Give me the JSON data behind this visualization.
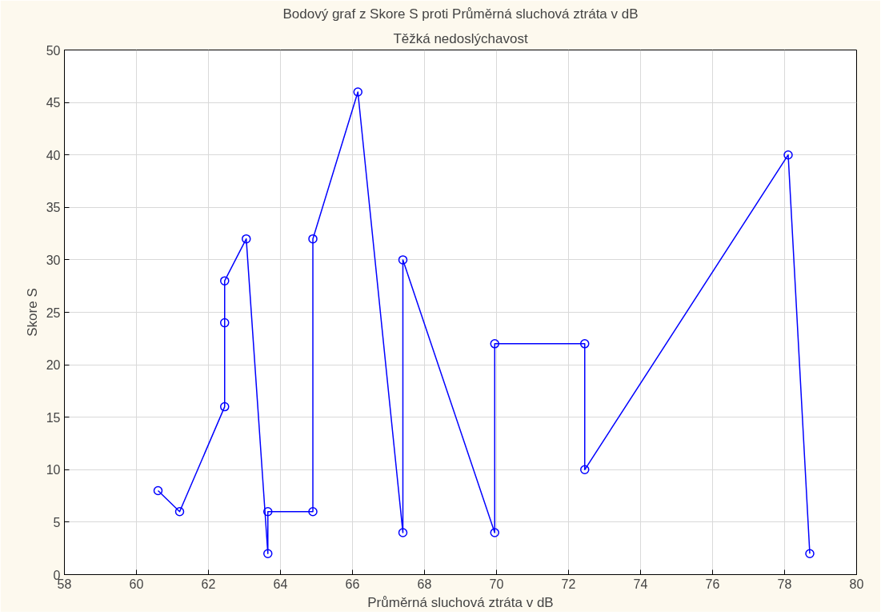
{
  "chart_data": {
    "type": "line",
    "title": "Bodový graf z Skore S proti Průměrná sluchová ztráta v dB",
    "subtitle": "Těžká nedoslýchavost",
    "xlabel": "Průměrná sluchová ztráta v dB",
    "ylabel": "Skore S",
    "x": [
      60.6,
      61.2,
      62.45,
      62.45,
      62.45,
      63.05,
      63.65,
      63.65,
      64.9,
      64.9,
      66.15,
      67.4,
      67.4,
      69.95,
      69.95,
      72.45,
      72.45,
      78.1,
      78.7
    ],
    "series": [
      {
        "color": "#0000ff",
        "values": [
          8,
          6,
          16,
          24,
          28,
          32,
          2,
          6,
          6,
          32,
          46,
          4,
          30,
          4,
          22,
          22,
          10,
          40,
          2
        ]
      }
    ],
    "xlim": [
      58,
      80
    ],
    "ylim": [
      0,
      50
    ],
    "xticks": [
      58,
      60,
      62,
      64,
      66,
      68,
      70,
      72,
      74,
      76,
      78,
      80
    ],
    "yticks": [
      0,
      5,
      10,
      15,
      20,
      25,
      30,
      35,
      40,
      45,
      50
    ],
    "grid": true,
    "marker": "circle",
    "line_style": "solid"
  }
}
